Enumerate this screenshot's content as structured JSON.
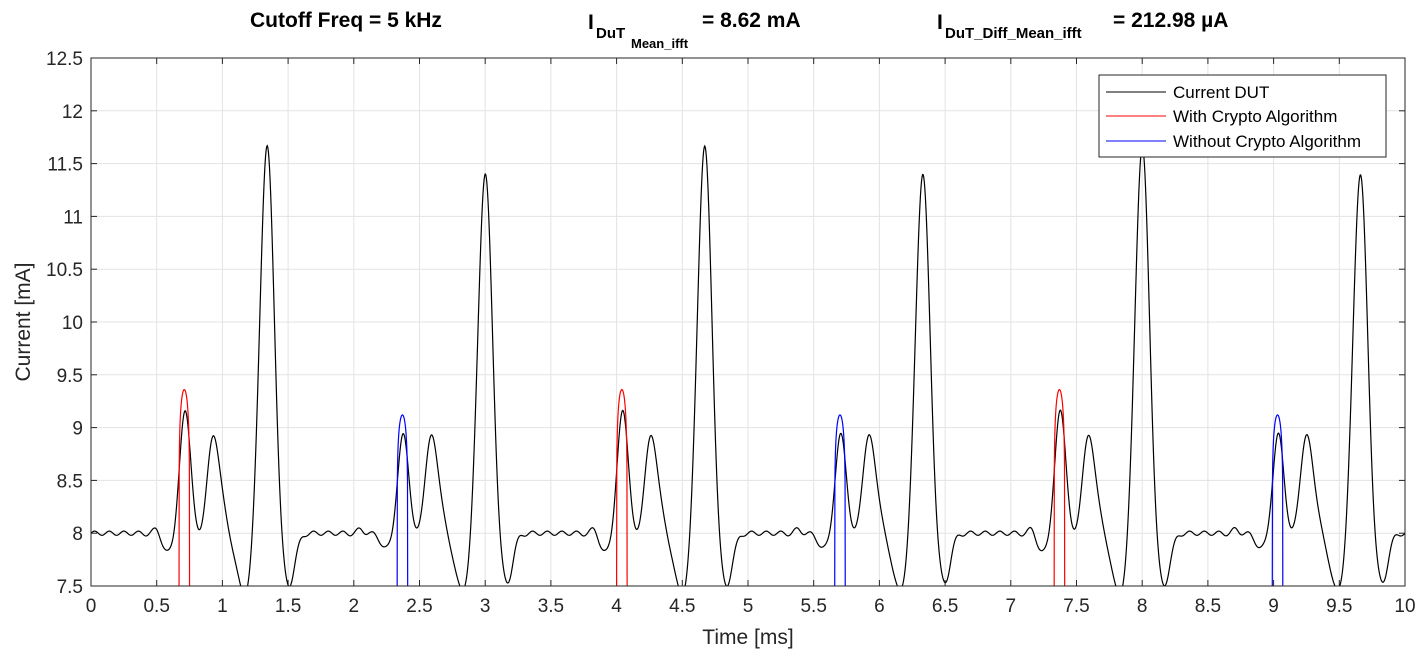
{
  "chart_data": {
    "type": "line",
    "title_parts": {
      "cutoff": "Cutoff Freq = 5 kHz",
      "mean_prefix": "I",
      "mean_sub": "DuT",
      "mean_subsub": "Mean_ifft",
      "mean_value": "= 8.62 mA",
      "diff_prefix": "I",
      "diff_sub": "DuT_Diff_Mean_ifft",
      "diff_value": "= 212.98 µA"
    },
    "xlabel": "Time [ms]",
    "ylabel": "Current [mA]",
    "xlim": [
      0,
      10
    ],
    "ylim": [
      7.5,
      12.5
    ],
    "x_ticks": [
      "0",
      "0.5",
      "1",
      "1.5",
      "2",
      "2.5",
      "3",
      "3.5",
      "4",
      "4.5",
      "5",
      "5.5",
      "6",
      "6.5",
      "7",
      "7.5",
      "8",
      "8.5",
      "9",
      "9.5",
      "10"
    ],
    "y_ticks": [
      "7.5",
      "8",
      "8.5",
      "9",
      "9.5",
      "10",
      "10.5",
      "11",
      "11.5",
      "12",
      "12.5"
    ],
    "grid": true,
    "legend_position": "top-right",
    "baseline": 8.0,
    "series": [
      {
        "name": "Current DUT",
        "color": "#000000",
        "cycle_period": 3.33,
        "cycle_starts": [
          0.0,
          3.33,
          6.66
        ],
        "pulses": [
          {
            "t": 0.5,
            "a": 0.05,
            "w": 0.025
          },
          {
            "t": 0.72,
            "a": 1.36,
            "w": 0.045
          },
          {
            "t": 0.93,
            "a": 1.0,
            "w": 0.06
          },
          {
            "t": 1.34,
            "a": 3.93,
            "w": 0.055
          },
          {
            "t": 1.55,
            "a": 0.05,
            "w": 0.025
          },
          {
            "t": 2.05,
            "a": 0.04,
            "w": 0.025
          },
          {
            "t": 2.38,
            "a": 1.12,
            "w": 0.045
          },
          {
            "t": 2.59,
            "a": 1.0,
            "w": 0.06
          },
          {
            "t": 3.0,
            "a": 3.65,
            "w": 0.055
          },
          {
            "t": 3.22,
            "a": 0.05,
            "w": 0.025
          }
        ]
      },
      {
        "name": "With Crypto Algorithm",
        "color": "#ff0000",
        "segments": [
          {
            "x_start": 0.67,
            "x_end": 0.75,
            "y_peak": 9.36
          },
          {
            "x_start": 4.0,
            "x_end": 4.08,
            "y_peak": 9.36
          },
          {
            "x_start": 7.33,
            "x_end": 7.41,
            "y_peak": 9.36
          }
        ]
      },
      {
        "name": "Without Crypto Algorithm",
        "color": "#0000ff",
        "segments": [
          {
            "x_start": 2.33,
            "x_end": 2.41,
            "y_peak": 9.12
          },
          {
            "x_start": 5.66,
            "x_end": 5.74,
            "y_peak": 9.12
          },
          {
            "x_start": 8.99,
            "x_end": 9.07,
            "y_peak": 9.12
          }
        ]
      }
    ]
  }
}
